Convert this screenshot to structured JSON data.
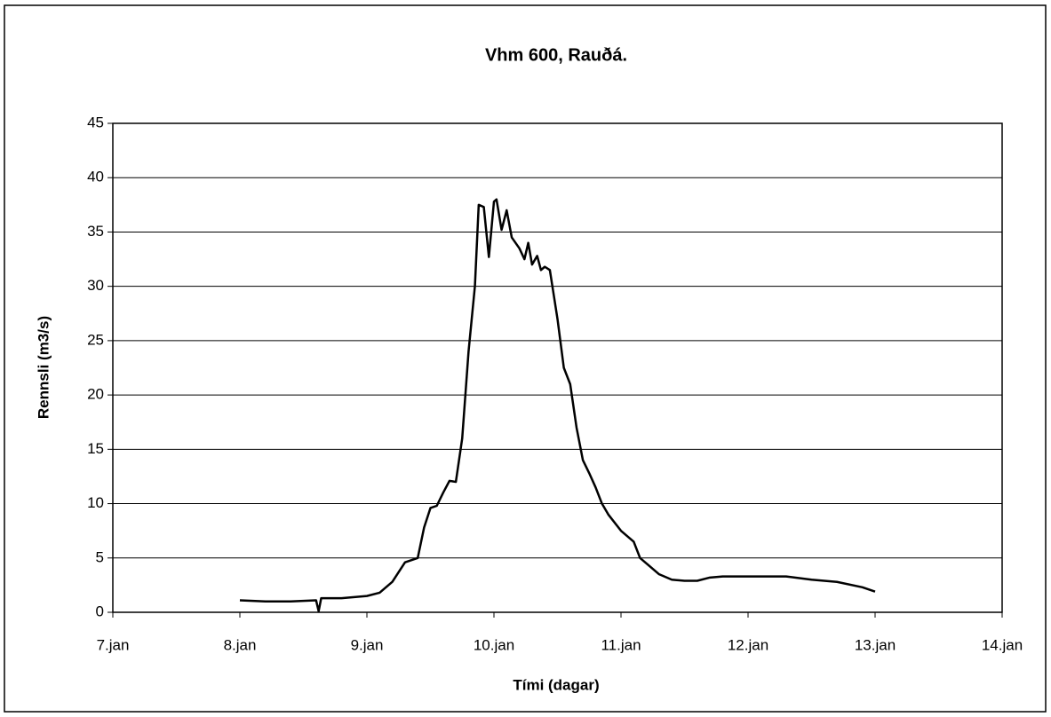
{
  "chart_data": {
    "type": "line",
    "title": "Vhm 600, Rauðá.",
    "x_label": "Tími (dagar)",
    "y_label": "Rennsli (m3/s)",
    "xlim": [
      7,
      14
    ],
    "xticks": [
      {
        "value": 7,
        "label": "7.jan"
      },
      {
        "value": 8,
        "label": "8.jan"
      },
      {
        "value": 9,
        "label": "9.jan"
      },
      {
        "value": 10,
        "label": "10.jan"
      },
      {
        "value": 11,
        "label": "11.jan"
      },
      {
        "value": 12,
        "label": "12.jan"
      },
      {
        "value": 13,
        "label": "13.jan"
      },
      {
        "value": 14,
        "label": "14.jan"
      }
    ],
    "ylim": [
      0,
      45
    ],
    "yticks": [
      0,
      5,
      10,
      15,
      20,
      25,
      30,
      35,
      40,
      45
    ],
    "grid": true,
    "series": [
      {
        "color": "#000000",
        "x": [
          8.0,
          8.2,
          8.4,
          8.6,
          8.62,
          8.64,
          8.8,
          9.0,
          9.1,
          9.2,
          9.3,
          9.4,
          9.45,
          9.5,
          9.55,
          9.6,
          9.65,
          9.7,
          9.75,
          9.8,
          9.85,
          9.88,
          9.92,
          9.96,
          10.0,
          10.02,
          10.06,
          10.1,
          10.14,
          10.2,
          10.24,
          10.27,
          10.3,
          10.34,
          10.37,
          10.4,
          10.44,
          10.5,
          10.55,
          10.6,
          10.65,
          10.7,
          10.75,
          10.8,
          10.85,
          10.9,
          11.0,
          11.1,
          11.15,
          11.2,
          11.3,
          11.4,
          11.5,
          11.6,
          11.7,
          11.8,
          12.0,
          12.3,
          12.5,
          12.7,
          12.9,
          13.0
        ],
        "values": [
          1.1,
          1.0,
          1.0,
          1.1,
          0.1,
          1.3,
          1.3,
          1.5,
          1.8,
          2.8,
          4.6,
          5.0,
          7.8,
          9.6,
          9.8,
          11.0,
          12.1,
          12.0,
          16,
          24,
          30,
          37.5,
          37.3,
          32.7,
          37.8,
          38.0,
          35.2,
          37.0,
          34.5,
          33.5,
          32.5,
          34.0,
          32.0,
          32.8,
          31.5,
          31.8,
          31.5,
          27,
          22.5,
          21,
          17,
          14,
          12.8,
          11.5,
          10,
          9,
          7.5,
          6.5,
          5,
          4.5,
          3.5,
          3.0,
          2.9,
          2.9,
          3.2,
          3.3,
          3.3,
          3.3,
          3.0,
          2.8,
          2.3,
          1.9
        ]
      }
    ]
  }
}
